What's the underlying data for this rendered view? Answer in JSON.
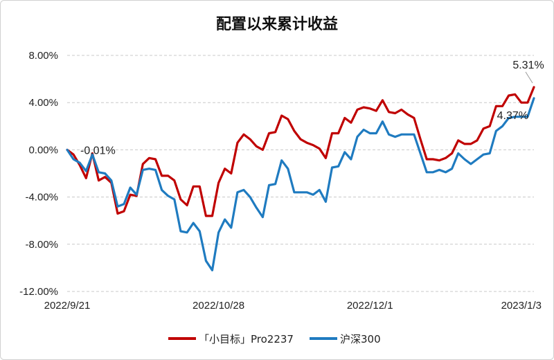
{
  "chart_data": {
    "type": "line",
    "title": "配置以来累计收益",
    "xlabel": "",
    "ylabel": "",
    "ylim": [
      -12,
      8
    ],
    "yticks": [
      8,
      4,
      0,
      -4,
      -8,
      -12
    ],
    "ytick_labels": [
      "8.00%",
      "4.00%",
      "0.00%",
      "-4.00%",
      "-8.00%",
      "-12.00%"
    ],
    "xtick_labels": [
      "2022/9/21",
      "2022/10/28",
      "2022/12/1",
      "2023/1/3"
    ],
    "xtick_index": [
      0,
      24,
      48,
      72
    ],
    "grid": "horizontal-dashed",
    "legend_position": "bottom",
    "series": [
      {
        "name": "「小目标」Pro2237",
        "color": "#c00000",
        "values": [
          0.0,
          -0.4,
          -1.3,
          -2.4,
          -0.3,
          -2.6,
          -2.3,
          -2.8,
          -5.4,
          -5.2,
          -3.8,
          -3.9,
          -1.2,
          -0.7,
          -0.8,
          -2.2,
          -2.2,
          -2.6,
          -4.2,
          -4.7,
          -3.1,
          -3.1,
          -5.6,
          -5.6,
          -2.8,
          -1.6,
          -2.0,
          0.6,
          1.3,
          0.9,
          0.3,
          0.0,
          1.4,
          1.5,
          2.9,
          2.6,
          1.6,
          0.9,
          0.6,
          0.4,
          0.1,
          -0.7,
          1.4,
          1.4,
          2.7,
          2.3,
          3.4,
          3.6,
          3.5,
          3.3,
          4.2,
          3.2,
          3.1,
          3.4,
          3.0,
          2.7,
          0.9,
          -0.8,
          -0.8,
          -0.9,
          -0.7,
          -0.3,
          0.8,
          0.5,
          0.5,
          0.8,
          1.8,
          2.0,
          3.7,
          3.7,
          4.6,
          4.7,
          4.0,
          4.0,
          5.31
        ]
      },
      {
        "name": "沪深300",
        "color": "#1f7bc0",
        "values": [
          0.0,
          -0.8,
          -1.1,
          -1.8,
          -0.4,
          -1.9,
          -2.0,
          -2.6,
          -4.8,
          -4.6,
          -3.2,
          -3.8,
          -1.7,
          -1.6,
          -1.7,
          -3.4,
          -3.9,
          -4.2,
          -6.9,
          -7.0,
          -6.2,
          -6.9,
          -9.4,
          -10.2,
          -7.0,
          -5.9,
          -6.6,
          -3.6,
          -3.4,
          -4.0,
          -4.9,
          -5.7,
          -3.0,
          -2.9,
          -0.9,
          -1.6,
          -3.6,
          -3.6,
          -3.6,
          -3.8,
          -3.4,
          -4.4,
          -1.5,
          -1.4,
          -0.2,
          -0.8,
          1.1,
          1.7,
          1.4,
          1.4,
          2.4,
          1.3,
          1.1,
          1.3,
          1.3,
          1.3,
          -0.3,
          -1.9,
          -1.9,
          -1.7,
          -1.9,
          -1.6,
          -0.3,
          -0.8,
          -1.2,
          -0.8,
          -0.4,
          -0.3,
          1.6,
          2.0,
          2.7,
          2.8,
          2.8,
          2.8,
          4.37
        ]
      }
    ],
    "annotations": [
      {
        "label": "-0.01%",
        "series": 1,
        "index": 0
      },
      {
        "label": "5.31%",
        "series": 0,
        "index": 74
      },
      {
        "label": "4.37%",
        "series": 1,
        "index": 74
      }
    ]
  }
}
